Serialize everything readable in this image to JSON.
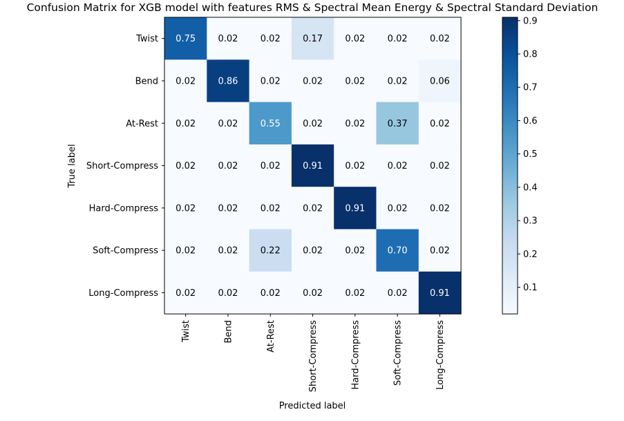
{
  "chart_data": {
    "type": "heatmap",
    "title": "Confusion Matrix for XGB model with features RMS & Spectral Mean Energy & Spectral Standard Deviation",
    "xlabel": "Predicted label",
    "ylabel": "True label",
    "row_labels": [
      "Twist",
      "Bend",
      "At-Rest",
      "Short-Compress",
      "Hard-Compress",
      "Soft-Compress",
      "Long-Compress"
    ],
    "col_labels": [
      "Twist",
      "Bend",
      "At-Rest",
      "Short-Compress",
      "Hard-Compress",
      "Soft-Compress",
      "Long-Compress"
    ],
    "matrix": [
      [
        0.75,
        0.02,
        0.02,
        0.17,
        0.02,
        0.02,
        0.02
      ],
      [
        0.02,
        0.86,
        0.02,
        0.02,
        0.02,
        0.02,
        0.06
      ],
      [
        0.02,
        0.02,
        0.55,
        0.02,
        0.02,
        0.37,
        0.02
      ],
      [
        0.02,
        0.02,
        0.02,
        0.91,
        0.02,
        0.02,
        0.02
      ],
      [
        0.02,
        0.02,
        0.02,
        0.02,
        0.91,
        0.02,
        0.02
      ],
      [
        0.02,
        0.02,
        0.22,
        0.02,
        0.02,
        0.7,
        0.02
      ],
      [
        0.02,
        0.02,
        0.02,
        0.02,
        0.02,
        0.02,
        0.91
      ]
    ],
    "value_format": "0.00",
    "colormap": "Blues",
    "colorbar": {
      "range": [
        0.02,
        0.91
      ],
      "ticks": [
        0.1,
        0.2,
        0.3,
        0.4,
        0.5,
        0.6,
        0.7,
        0.8,
        0.9
      ],
      "tick_labels": [
        "0.1",
        "0.2",
        "0.3",
        "0.4",
        "0.5",
        "0.6",
        "0.7",
        "0.8",
        "0.9"
      ]
    },
    "grid": false
  }
}
